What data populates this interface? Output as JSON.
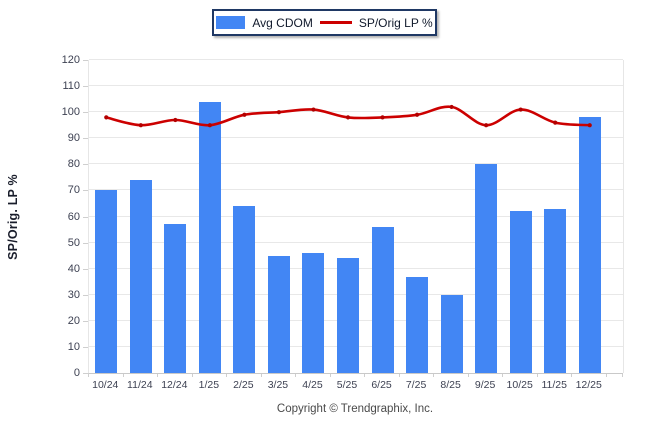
{
  "legend": {
    "bar_label": "Avg CDOM",
    "line_label": "SP/Orig LP %"
  },
  "y_axis": {
    "title": "SP/Orig. LP %",
    "min": 0,
    "max": 120,
    "step": 10
  },
  "footer": {
    "text": "Copyright © Trendgraphix, Inc."
  },
  "colors": {
    "bar": "#4286f4",
    "line": "#cc0000",
    "line_marker": "#b30000",
    "legend_border": "#1f3864"
  },
  "chart_data": {
    "type": "bar",
    "title": "",
    "xlabel": "",
    "ylabel": "SP/Orig. LP %",
    "ylim": [
      0,
      120
    ],
    "grid": "horizontal",
    "legend_position": "top-center",
    "categories": [
      "10/24",
      "11/24",
      "12/24",
      "1/25",
      "2/25",
      "3/25",
      "4/25",
      "5/25",
      "6/25",
      "7/25",
      "8/25",
      "9/25",
      "10/25",
      "11/25",
      "12/25"
    ],
    "series": [
      {
        "name": "Avg CDOM",
        "type": "bar",
        "values": [
          70,
          74,
          57,
          104,
          64,
          45,
          46,
          44,
          56,
          37,
          30,
          80,
          62,
          63,
          98
        ]
      },
      {
        "name": "SP/Orig LP %",
        "type": "line",
        "smooth": true,
        "values": [
          98,
          95,
          97,
          95,
          99,
          100,
          101,
          98,
          98,
          99,
          102,
          95,
          101,
          96,
          95
        ]
      }
    ]
  }
}
